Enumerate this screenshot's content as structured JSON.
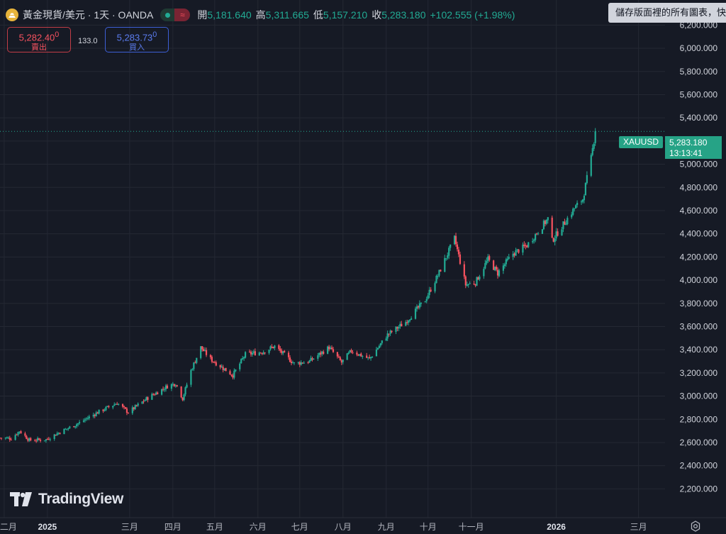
{
  "legend": {
    "symbol_title": "黃金現貨/美元 · 1天 · OANDA",
    "status_icon": "market-open-dot",
    "replay_icon": "approx-icon",
    "open_label": "開",
    "open_value": "5,181.640",
    "high_label": "高",
    "high_value": "5,311.665",
    "low_label": "低",
    "low_value": "5,157.210",
    "close_label": "收",
    "close_value": "5,283.180",
    "change": "+102.555 (+1.98%)"
  },
  "tooltip": {
    "text": "儲存版面裡的所有圖表，快"
  },
  "trade": {
    "sell_price": "5,282.40",
    "sell_sup": "0",
    "sell_label": "賣出",
    "spread": "133.0",
    "buy_price": "5,283.73",
    "buy_sup": "0",
    "buy_label": "買入"
  },
  "price_tag": {
    "symbol": "XAUUSD",
    "price": "5,283.180",
    "countdown": "13:13:41"
  },
  "logo": {
    "text": "TradingView",
    "icon": "tradingview-logo-icon"
  },
  "settings": {
    "icon": "gear-icon"
  },
  "colors": {
    "up": "#22ab94",
    "down": "#f7525f",
    "background": "#161a25",
    "grid": "#242833"
  },
  "chart_data": {
    "type": "candlestick",
    "symbol": "XAUUSD",
    "timeframe": "1天",
    "y_ticks": [
      2200,
      2400,
      2600,
      2800,
      3000,
      3200,
      3400,
      3600,
      3800,
      4000,
      4200,
      4400,
      4600,
      4800,
      5000,
      5200,
      5400,
      5600,
      5800,
      6000,
      6200
    ],
    "y_tick_labels": [
      "2,200.000",
      "2,400.000",
      "2,600.000",
      "2,800.000",
      "3,000.000",
      "3,200.000",
      "3,400.000",
      "3,600.000",
      "3,800.000",
      "4,000.000",
      "4,200.000",
      "4,400.000",
      "4,600.000",
      "4,800.000",
      "5,000.000",
      "5,200.000",
      "5,400.000",
      "5,600.000",
      "5,800.000",
      "6,000.000",
      "6,200.000"
    ],
    "ylim": [
      2100,
      6300
    ],
    "xlim": [
      "2024-11-28",
      "2026-03-20"
    ],
    "x_ticks": [
      {
        "date": "2024-12-01",
        "label": "十二月"
      },
      {
        "date": "2025-01-01",
        "label": "2025"
      },
      {
        "date": "2025-03-01",
        "label": "三月"
      },
      {
        "date": "2025-04-01",
        "label": "四月"
      },
      {
        "date": "2025-05-01",
        "label": "五月"
      },
      {
        "date": "2025-06-01",
        "label": "六月"
      },
      {
        "date": "2025-07-01",
        "label": "七月"
      },
      {
        "date": "2025-08-01",
        "label": "八月"
      },
      {
        "date": "2025-09-01",
        "label": "九月"
      },
      {
        "date": "2025-10-01",
        "label": "十月"
      },
      {
        "date": "2025-11-01",
        "label": "十一月"
      },
      {
        "date": "2026-01-01",
        "label": "2026"
      },
      {
        "date": "2026-03-01",
        "label": "三月"
      }
    ],
    "close_path": [
      [
        "2024-11-28",
        2640
      ],
      [
        "2024-12-06",
        2635
      ],
      [
        "2024-12-12",
        2700
      ],
      [
        "2024-12-19",
        2620
      ],
      [
        "2024-12-31",
        2625
      ],
      [
        "2025-01-10",
        2690
      ],
      [
        "2025-01-24",
        2770
      ],
      [
        "2025-02-06",
        2860
      ],
      [
        "2025-02-20",
        2940
      ],
      [
        "2025-02-28",
        2860
      ],
      [
        "2025-03-14",
        2985
      ],
      [
        "2025-03-28",
        3085
      ],
      [
        "2025-04-03",
        3110
      ],
      [
        "2025-04-08",
        2980
      ],
      [
        "2025-04-14",
        3220
      ],
      [
        "2025-04-21",
        3420
      ],
      [
        "2025-04-28",
        3320
      ],
      [
        "2025-05-14",
        3180
      ],
      [
        "2025-05-23",
        3360
      ],
      [
        "2025-06-04",
        3380
      ],
      [
        "2025-06-13",
        3430
      ],
      [
        "2025-06-27",
        3280
      ],
      [
        "2025-07-08",
        3300
      ],
      [
        "2025-07-22",
        3420
      ],
      [
        "2025-07-31",
        3290
      ],
      [
        "2025-08-07",
        3390
      ],
      [
        "2025-08-20",
        3320
      ],
      [
        "2025-09-02",
        3530
      ],
      [
        "2025-09-15",
        3640
      ],
      [
        "2025-09-29",
        3830
      ],
      [
        "2025-10-08",
        4040
      ],
      [
        "2025-10-20",
        4360
      ],
      [
        "2025-10-28",
        3960
      ],
      [
        "2025-11-04",
        3980
      ],
      [
        "2025-11-13",
        4180
      ],
      [
        "2025-11-20",
        4060
      ],
      [
        "2025-12-01",
        4230
      ],
      [
        "2025-12-11",
        4300
      ],
      [
        "2025-12-26",
        4530
      ],
      [
        "2025-12-29",
        4340
      ],
      [
        "2026-01-06",
        4480
      ],
      [
        "2026-01-14",
        4620
      ],
      [
        "2026-01-20",
        4700
      ],
      [
        "2026-01-26",
        5050
      ],
      [
        "2026-01-29",
        5283.18
      ]
    ],
    "last_candle": {
      "date": "2026-01-29",
      "open": 5181.64,
      "high": 5311.665,
      "low": 5157.21,
      "close": 5283.18
    }
  }
}
